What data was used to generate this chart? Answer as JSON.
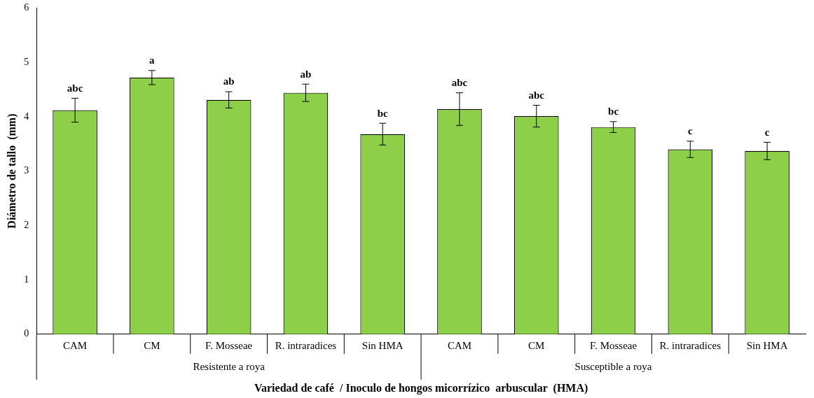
{
  "chart_data": {
    "type": "bar",
    "categories": [
      "CAM",
      "CM",
      "F. Mosseae",
      "R. intraradices",
      "Sin HMA",
      "CAM",
      "CM",
      "F. Mosseae",
      "R. intraradices",
      "Sin HMA"
    ],
    "values": [
      4.12,
      4.72,
      4.31,
      4.44,
      3.68,
      4.14,
      4.01,
      3.81,
      3.4,
      3.37
    ],
    "errors": [
      0.22,
      0.13,
      0.15,
      0.16,
      0.2,
      0.3,
      0.2,
      0.1,
      0.15,
      0.16
    ],
    "value_labels": [
      "abc",
      "a",
      "ab",
      "ab",
      "bc",
      "abc",
      "abc",
      "bc",
      "c",
      "c"
    ],
    "color": "#8ecf4a",
    "xlabel": "Variedad de café  / Inoculo de hongos micorrízico  arbuscular  (HMA)",
    "ylabel": "Diámetro de tallo  (mm)",
    "annotations": [
      "Resistente a roya",
      "Susceptible a roya"
    ],
    "ylim": [
      0,
      6
    ],
    "yticks": [
      0,
      1,
      2,
      3,
      4,
      5,
      6
    ],
    "grid": false,
    "legend": false
  }
}
